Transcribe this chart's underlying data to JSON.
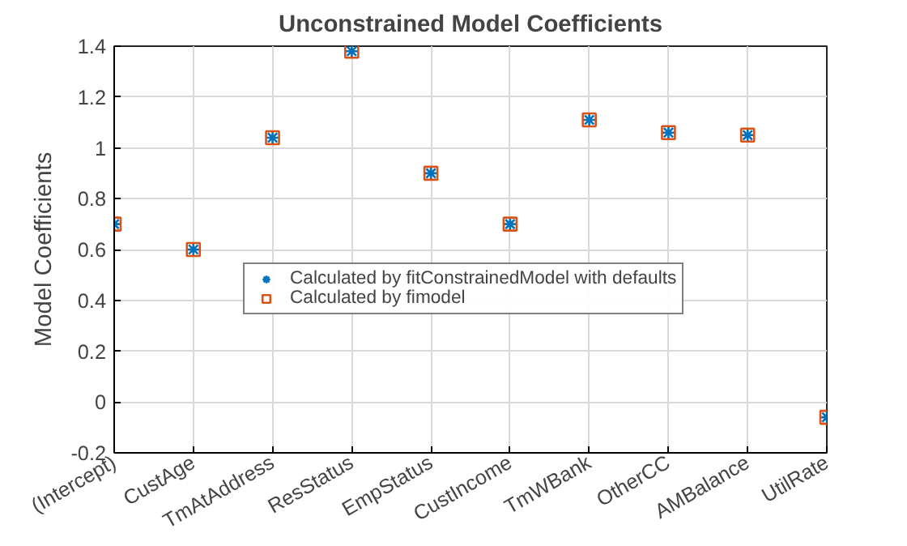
{
  "chart_data": {
    "type": "scatter",
    "title": "Unconstrained Model Coefficients",
    "ylabel": "Model Coefficients",
    "categories": [
      "(Intercept)",
      "CustAge",
      "TmAtAddress",
      "ResStatus",
      "EmpStatus",
      "CustIncome",
      "TmWBank",
      "OtherCC",
      "AMBalance",
      "UtilRate"
    ],
    "series": [
      {
        "name": "Calculated by fitConstrainedModel with defaults",
        "color": "#0072bd",
        "marker": "cross",
        "values": [
          0.7,
          0.6,
          1.04,
          1.38,
          0.9,
          0.7,
          1.11,
          1.06,
          1.05,
          -0.06
        ]
      },
      {
        "name": "Calculated by fimodel",
        "color": "#d95319",
        "marker": "square",
        "values": [
          0.7,
          0.6,
          1.04,
          1.38,
          0.9,
          0.7,
          1.11,
          1.06,
          1.05,
          -0.06
        ]
      }
    ],
    "ylim": [
      -0.2,
      1.4
    ],
    "yticks": [
      -0.2,
      0,
      0.2,
      0.4,
      0.6,
      0.8,
      1,
      1.2,
      1.4
    ],
    "grid": true,
    "legend": "center"
  }
}
